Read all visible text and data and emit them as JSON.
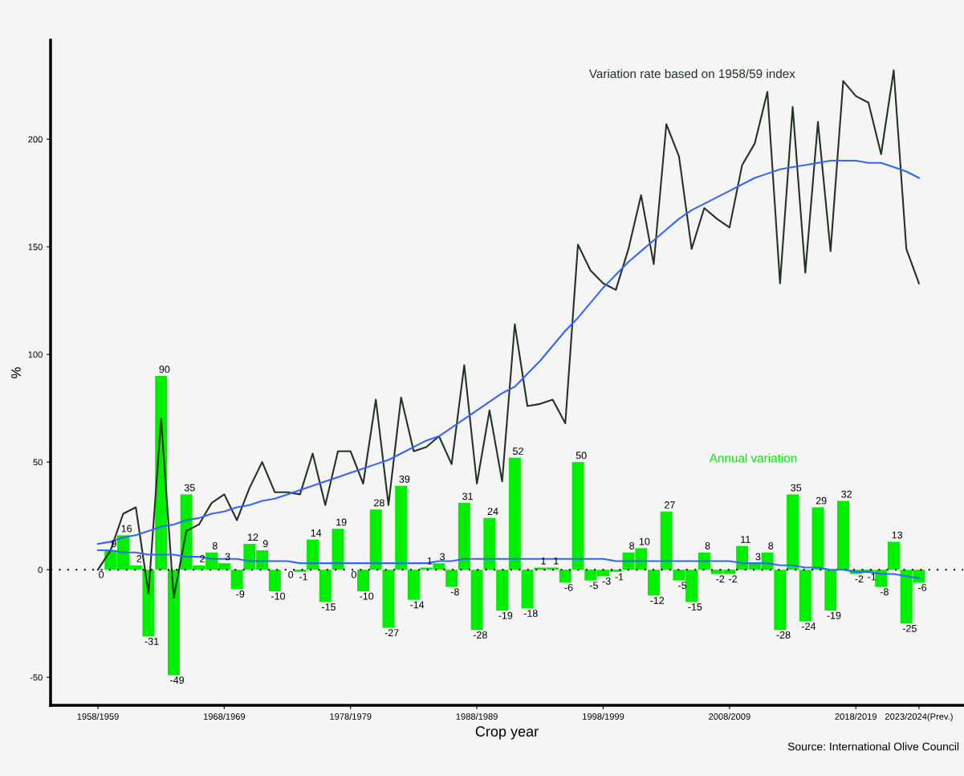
{
  "chart_data": {
    "type": "bar",
    "xlabel": "Crop year",
    "ylabel": "%",
    "categories": [
      "1958/1959",
      null,
      null,
      null,
      null,
      null,
      null,
      null,
      null,
      null,
      "1968/1969",
      null,
      null,
      null,
      null,
      null,
      null,
      null,
      null,
      null,
      "1978/1979",
      null,
      null,
      null,
      null,
      null,
      null,
      null,
      null,
      null,
      "1988/1989",
      null,
      null,
      null,
      null,
      null,
      null,
      null,
      null,
      null,
      "1998/1999",
      null,
      null,
      null,
      null,
      null,
      null,
      null,
      null,
      null,
      "2008/2009",
      null,
      null,
      null,
      null,
      null,
      null,
      null,
      null,
      null,
      "2018/2019",
      null,
      null,
      null,
      null,
      "2023/2024(Prev.)"
    ],
    "series": [
      {
        "name": "Annual variation",
        "color": "#00ee00",
        "values": [
          0,
          9,
          16,
          2,
          -31,
          90,
          -49,
          35,
          2,
          8,
          3,
          -9,
          12,
          9,
          -10,
          0,
          -1,
          14,
          -15,
          19,
          0,
          -10,
          28,
          -27,
          39,
          -14,
          1,
          3,
          -8,
          31,
          -28,
          24,
          -19,
          52,
          -18,
          1,
          1,
          -6,
          50,
          -5,
          -3,
          -1,
          8,
          10,
          -12,
          27,
          -5,
          -15,
          8,
          -2,
          -2,
          11,
          3,
          8,
          -28,
          35,
          -24,
          29,
          -19,
          32,
          -2,
          -1,
          -8,
          13,
          -25,
          -6
        ],
        "value_labels": [
          "0",
          "9",
          "16",
          "2",
          "-31",
          "90",
          "-49",
          "35",
          "2",
          "8",
          "3",
          "-9",
          "12",
          "9",
          "-10",
          "0",
          "-1",
          "14",
          "-15",
          "19",
          "0",
          "-10",
          "28",
          "-27",
          "39",
          "-14",
          "1",
          "3",
          "-8",
          "31",
          "-28",
          "24",
          "-19",
          "52",
          "-18",
          "1",
          "1",
          "-6",
          "50",
          "-5",
          "-3",
          "-1",
          "8",
          "10",
          "-12",
          "27",
          "-5",
          "-15",
          "8",
          "-2",
          "-2",
          "11",
          "3",
          "8",
          "-28",
          "35",
          "-24",
          "29",
          "-19",
          "32",
          "-2",
          "-1",
          "-8",
          "13",
          "-25",
          "-6"
        ]
      },
      {
        "type": "line",
        "name": "Variation rate based on 1958/59 index",
        "color": "#223322",
        "values": [
          0,
          9,
          26,
          29,
          -11,
          70,
          -13,
          18,
          21,
          31,
          35,
          23,
          38,
          50,
          36,
          36,
          35,
          54,
          30,
          55,
          55,
          40,
          79,
          30,
          80,
          55,
          57,
          62,
          49,
          95,
          40,
          74,
          41,
          114,
          76,
          77,
          79,
          68,
          151,
          139,
          133,
          130,
          149,
          174,
          142,
          207,
          192,
          149,
          168,
          163,
          159,
          188,
          198,
          222,
          133,
          215,
          138,
          208,
          148,
          227,
          220,
          217,
          193,
          232,
          149,
          133
        ]
      },
      {
        "type": "line",
        "color": "#3366ff",
        "values": [
          12,
          13,
          15,
          16,
          18,
          20,
          21,
          23,
          24,
          26,
          27,
          29,
          30,
          32,
          33,
          35,
          37,
          39,
          41,
          43,
          45,
          47,
          49,
          51,
          54,
          57,
          60,
          62,
          66,
          70,
          74,
          78,
          82,
          85,
          91,
          97,
          104,
          111,
          117,
          124,
          131,
          137,
          143,
          148,
          153,
          158,
          163,
          167,
          170,
          173,
          176,
          179,
          182,
          184,
          186,
          187,
          188,
          189,
          190,
          190,
          190,
          189,
          189,
          187,
          185,
          182
        ]
      },
      {
        "type": "line",
        "color": "#3366ff",
        "values": [
          9,
          9,
          8,
          8,
          7,
          7,
          7,
          6,
          6,
          5,
          5,
          5,
          4,
          4,
          4,
          4,
          3,
          3,
          3,
          3,
          3,
          3,
          3,
          3,
          3,
          3,
          3,
          4,
          4,
          5,
          5,
          5,
          5,
          5,
          5,
          5,
          5,
          5,
          5,
          5,
          5,
          4,
          4,
          4,
          4,
          4,
          4,
          4,
          4,
          4,
          4,
          3,
          3,
          3,
          2,
          2,
          1,
          1,
          0,
          0,
          -1,
          -1,
          -2,
          -2,
          -3,
          -4
        ]
      }
    ],
    "ylim": [
      -63,
      246
    ],
    "yticks": [
      -50,
      0,
      50,
      100,
      150,
      200
    ],
    "ref_lines": [
      {
        "axis": "y",
        "value": 0,
        "color": "#000000",
        "line_style": "dotted"
      }
    ],
    "grid": false,
    "annotations": [
      "Source: International Olive Council"
    ]
  }
}
